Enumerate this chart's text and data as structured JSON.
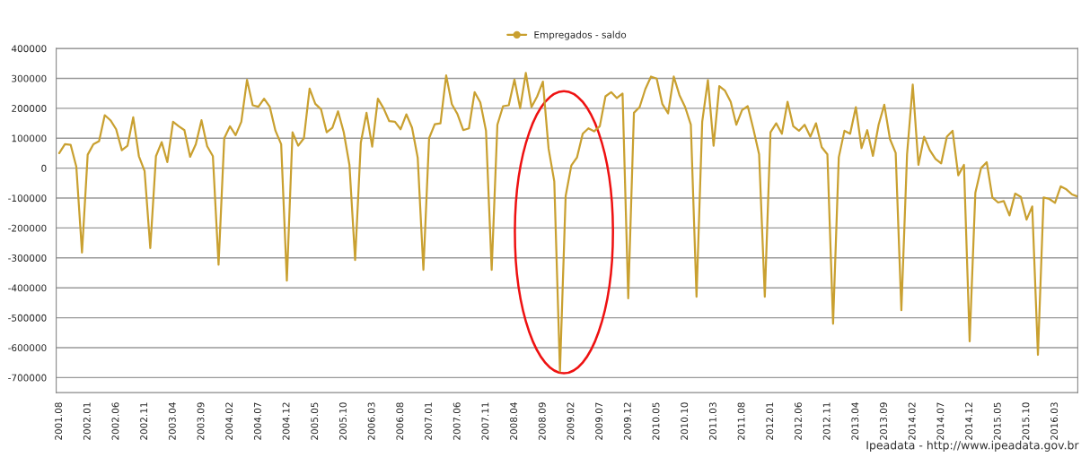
{
  "chart_data": {
    "type": "line",
    "x": [
      "2001-08",
      "2001-09",
      "2001-10",
      "2001-11",
      "2001-12",
      "2002-01",
      "2002-02",
      "2002-03",
      "2002-04",
      "2002-05",
      "2002-06",
      "2002-07",
      "2002-08",
      "2002-09",
      "2002-10",
      "2002-11",
      "2002-12",
      "2003-01",
      "2003-02",
      "2003-03",
      "2003-04",
      "2003-05",
      "2003-06",
      "2003-07",
      "2003-08",
      "2003-09",
      "2003-10",
      "2003-11",
      "2003-12",
      "2004-01",
      "2004-02",
      "2004-03",
      "2004-04",
      "2004-05",
      "2004-06",
      "2004-07",
      "2004-08",
      "2004-09",
      "2004-10",
      "2004-11",
      "2004-12",
      "2005-01",
      "2005-02",
      "2005-03",
      "2005-04",
      "2005-05",
      "2005-06",
      "2005-07",
      "2005-08",
      "2005-09",
      "2005-10",
      "2005-11",
      "2005-12",
      "2006-01",
      "2006-02",
      "2006-03",
      "2006-04",
      "2006-05",
      "2006-06",
      "2006-07",
      "2006-08",
      "2006-09",
      "2006-10",
      "2006-11",
      "2006-12",
      "2007-01",
      "2007-02",
      "2007-03",
      "2007-04",
      "2007-05",
      "2007-06",
      "2007-07",
      "2007-08",
      "2007-09",
      "2007-10",
      "2007-11",
      "2007-12",
      "2008-01",
      "2008-02",
      "2008-03",
      "2008-04",
      "2008-05",
      "2008-06",
      "2008-07",
      "2008-08",
      "2008-09",
      "2008-10",
      "2008-11",
      "2008-12",
      "2009-01",
      "2009-02",
      "2009-03",
      "2009-04",
      "2009-05",
      "2009-06",
      "2009-07",
      "2009-08",
      "2009-09",
      "2009-10",
      "2009-11",
      "2009-12",
      "2010-01",
      "2010-02",
      "2010-03",
      "2010-04",
      "2010-05",
      "2010-06",
      "2010-07",
      "2010-08",
      "2010-09",
      "2010-10",
      "2010-11",
      "2010-12",
      "2011-01",
      "2011-02",
      "2011-03",
      "2011-04",
      "2011-05",
      "2011-06",
      "2011-07",
      "2011-08",
      "2011-09",
      "2011-10",
      "2011-11",
      "2011-12",
      "2012-01",
      "2012-02",
      "2012-03",
      "2012-04",
      "2012-05",
      "2012-06",
      "2012-07",
      "2012-08",
      "2012-09",
      "2012-10",
      "2012-11",
      "2012-12",
      "2013-01",
      "2013-02",
      "2013-03",
      "2013-04",
      "2013-05",
      "2013-06",
      "2013-07",
      "2013-08",
      "2013-09",
      "2013-10",
      "2013-11",
      "2013-12",
      "2014-01",
      "2014-02",
      "2014-03",
      "2014-04",
      "2014-05",
      "2014-06",
      "2014-07",
      "2014-08",
      "2014-09",
      "2014-10",
      "2014-11",
      "2014-12",
      "2015-01",
      "2015-02",
      "2015-03",
      "2015-04",
      "2015-05",
      "2015-06",
      "2015-07",
      "2015-08",
      "2015-09",
      "2015-10",
      "2015-11",
      "2015-12",
      "2016-01",
      "2016-02",
      "2016-03",
      "2016-04",
      "2016-05",
      "2016-06",
      "2016-07"
    ],
    "series": [
      {
        "name": "Empregados - saldo",
        "color": "#c9a030",
        "values": [
          50000,
          80000,
          78000,
          5000,
          -282000,
          45000,
          80000,
          90000,
          177000,
          160000,
          130000,
          60000,
          75000,
          170000,
          40000,
          -10000,
          -267000,
          40000,
          87000,
          20000,
          155000,
          140000,
          127000,
          38000,
          80000,
          160000,
          73000,
          40000,
          -323000,
          100000,
          140000,
          110000,
          155000,
          295000,
          210000,
          205000,
          232000,
          205000,
          125000,
          80000,
          -376000,
          120000,
          75000,
          100000,
          266000,
          215000,
          197000,
          120000,
          135000,
          190000,
          120000,
          11000,
          -307000,
          85000,
          185000,
          72000,
          232000,
          200000,
          157000,
          155000,
          130000,
          180000,
          135000,
          35000,
          -340000,
          100000,
          147000,
          150000,
          310000,
          214000,
          180000,
          127000,
          133000,
          254000,
          220000,
          125000,
          -340000,
          145000,
          207000,
          210000,
          296000,
          200000,
          318000,
          204000,
          240000,
          289000,
          65000,
          -44000,
          -679000,
          -93000,
          9000,
          36000,
          115000,
          133000,
          123000,
          140000,
          240000,
          254000,
          234000,
          249000,
          -435000,
          185000,
          204000,
          264000,
          306000,
          299000,
          214000,
          183000,
          306000,
          244000,
          204000,
          145000,
          -430000,
          155000,
          294000,
          75000,
          274000,
          259000,
          222000,
          145000,
          194000,
          207000,
          130000,
          46000,
          -430000,
          120000,
          150000,
          115000,
          222000,
          140000,
          125000,
          145000,
          105000,
          150000,
          70000,
          46000,
          -520000,
          36000,
          125000,
          115000,
          204000,
          67000,
          127000,
          41000,
          145000,
          212000,
          97000,
          51000,
          -475000,
          46000,
          279000,
          11000,
          105000,
          60000,
          31000,
          16000,
          105000,
          125000,
          -24000,
          11000,
          -579000,
          -83000,
          0,
          20000,
          -98000,
          -115000,
          -110000,
          -158000,
          -85000,
          -96000,
          -172000,
          -128000,
          -624000,
          -98000,
          -103000,
          -116000,
          -61000,
          -71000,
          -88000,
          -95000
        ]
      }
    ],
    "xlim": [
      "2001-07-15",
      "2016-07-01"
    ],
    "xticks": [
      {
        "value": "2001-08",
        "label": "2001.08"
      },
      {
        "value": "2002-01",
        "label": "2002.01"
      },
      {
        "value": "2002-06",
        "label": "2002.06"
      },
      {
        "value": "2002-11",
        "label": "2002.11"
      },
      {
        "value": "2003-04",
        "label": "2003.04"
      },
      {
        "value": "2003-09",
        "label": "2003.09"
      },
      {
        "value": "2004-02",
        "label": "2004.02"
      },
      {
        "value": "2004-07",
        "label": "2004.07"
      },
      {
        "value": "2004-12",
        "label": "2004.12"
      },
      {
        "value": "2005-05",
        "label": "2005.05"
      },
      {
        "value": "2005-10",
        "label": "2005.10"
      },
      {
        "value": "2006-03",
        "label": "2006.03"
      },
      {
        "value": "2006-08",
        "label": "2006.08"
      },
      {
        "value": "2007-01",
        "label": "2007.01"
      },
      {
        "value": "2007-06",
        "label": "2007.06"
      },
      {
        "value": "2007-11",
        "label": "2007.11"
      },
      {
        "value": "2008-04",
        "label": "2008.04"
      },
      {
        "value": "2008-09",
        "label": "2008.09"
      },
      {
        "value": "2009-02",
        "label": "2009.02"
      },
      {
        "value": "2009-07",
        "label": "2009.07"
      },
      {
        "value": "2009-12",
        "label": "2009.12"
      },
      {
        "value": "2010-05",
        "label": "2010.05"
      },
      {
        "value": "2010-10",
        "label": "2010.10"
      },
      {
        "value": "2011-03",
        "label": "2011.03"
      },
      {
        "value": "2011-08",
        "label": "2011.08"
      },
      {
        "value": "2012-01",
        "label": "2012.01"
      },
      {
        "value": "2012-06",
        "label": "2012.06"
      },
      {
        "value": "2012-11",
        "label": "2012.11"
      },
      {
        "value": "2013-04",
        "label": "2013.04"
      },
      {
        "value": "2013-09",
        "label": "2013.09"
      },
      {
        "value": "2014-02",
        "label": "2014.02"
      },
      {
        "value": "2014-07",
        "label": "2014.07"
      },
      {
        "value": "2014-12",
        "label": "2014.12"
      },
      {
        "value": "2015-05",
        "label": "2015.05"
      },
      {
        "value": "2015-10",
        "label": "2015.10"
      },
      {
        "value": "2016-03",
        "label": "2016.03"
      }
    ],
    "ylim": [
      -750000,
      400000
    ],
    "yticks": [
      -700000,
      -600000,
      -500000,
      -400000,
      -300000,
      -200000,
      -100000,
      0,
      100000,
      200000,
      300000,
      400000
    ],
    "grid": "y",
    "legend": "top",
    "annotations": [
      "Ipeadata - http://www.ipeadata.gov.br"
    ]
  }
}
